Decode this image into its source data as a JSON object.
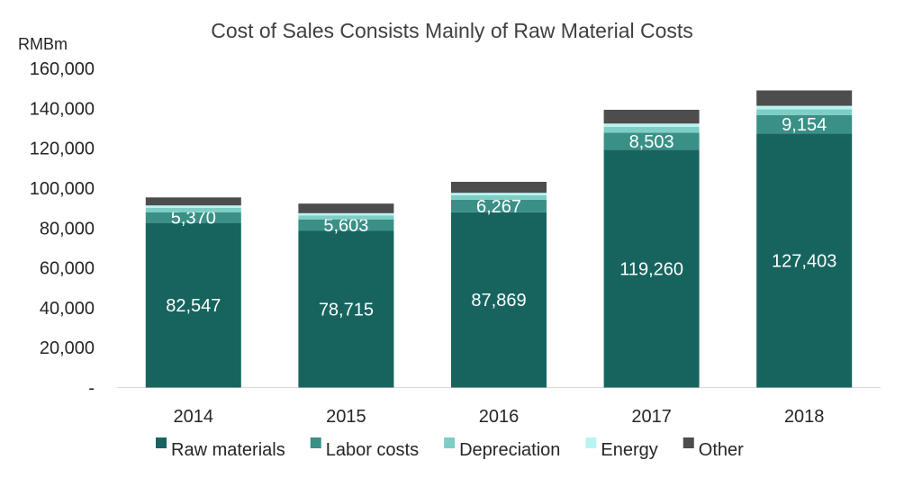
{
  "chart_data": {
    "type": "bar",
    "stacked": true,
    "title": "Cost of Sales Consists Mainly of Raw Material Costs",
    "unit_label": "RMBm",
    "xlabel": "",
    "ylabel": "RMBm",
    "categories": [
      "2014",
      "2015",
      "2016",
      "2017",
      "2018"
    ],
    "ylim": [
      0,
      160000
    ],
    "y_ticks": [
      0,
      20000,
      40000,
      60000,
      80000,
      100000,
      120000,
      140000,
      160000
    ],
    "y_tick_labels": [
      "-",
      "20,000",
      "40,000",
      "60,000",
      "80,000",
      "100,000",
      "120,000",
      "140,000",
      "160,000"
    ],
    "grid": false,
    "legend_position": "bottom",
    "series": [
      {
        "name": "Raw materials",
        "color": "#17645f",
        "values": [
          82547,
          78715,
          87869,
          119260,
          127403
        ],
        "labels": [
          "82,547",
          "78,715",
          "87,869",
          "119,260",
          "127,403"
        ]
      },
      {
        "name": "Labor costs",
        "color": "#3a9087",
        "values": [
          5370,
          5603,
          6267,
          8503,
          9154
        ],
        "labels": [
          "5,370",
          "5,603",
          "6,267",
          "8,503",
          "9,154"
        ]
      },
      {
        "name": "Depreciation",
        "color": "#7ecec6",
        "values": [
          2200,
          2000,
          2300,
          3000,
          3000
        ],
        "labels": []
      },
      {
        "name": "Energy",
        "color": "#b8f4f2",
        "values": [
          1200,
          1100,
          1200,
          1600,
          1700
        ],
        "labels": []
      },
      {
        "name": "Other",
        "color": "#4d4d4d",
        "values": [
          4000,
          4800,
          5500,
          6900,
          7700
        ],
        "labels": []
      }
    ]
  }
}
